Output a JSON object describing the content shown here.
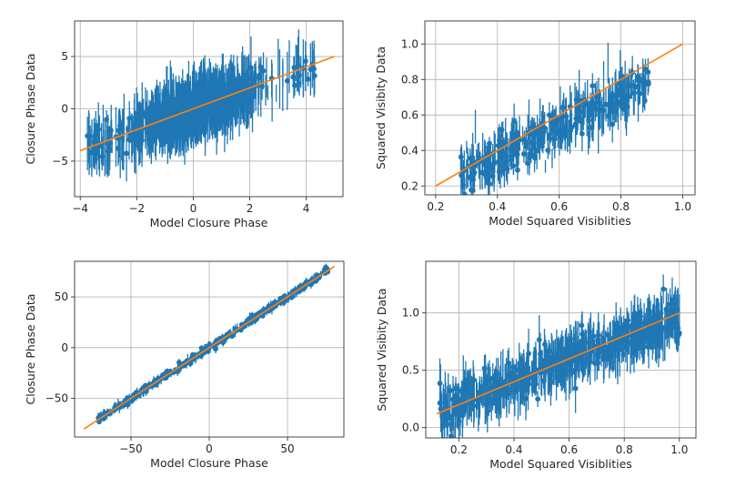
{
  "figure": {
    "colors": {
      "data": "#1f77b4",
      "fit": "#ff7f0e",
      "grid": "#b0b0b0",
      "axes": "#333333"
    }
  },
  "chart_data": [
    {
      "id": "closure-phase-top",
      "type": "scatter",
      "xlabel": "Model Closure Phase",
      "ylabel": "Closure Phase Data",
      "xlim": [
        -4.2,
        5.3
      ],
      "ylim": [
        -8.4,
        8.4
      ],
      "xticks": [
        -4,
        -2,
        0,
        2,
        4
      ],
      "xtick_labels": [
        "−4",
        "−2",
        "0",
        "2",
        "4"
      ],
      "yticks": [
        -5,
        0,
        5
      ],
      "ytick_labels": [
        "−5",
        "0",
        "5"
      ],
      "grid": true,
      "fit_line": {
        "x": [
          -4.0,
          5.0
        ],
        "y": [
          -4.0,
          5.0
        ]
      },
      "points": {
        "count": 900,
        "x_center": 0.0,
        "x_spread": 1.2,
        "x_range": [
          -3.8,
          4.3
        ],
        "slope": 1.0,
        "noise": 0.9,
        "err_min": 0.5,
        "err_max": 3.0,
        "extra_clusters": [
          {
            "x": [
              3.5,
              4.3
            ],
            "count": 25
          },
          {
            "x": [
              -3.8,
              -2.5
            ],
            "count": 40
          }
        ]
      }
    },
    {
      "id": "squared-visibility-top",
      "type": "scatter",
      "xlabel": "Model Squared Visiblities",
      "ylabel": "Squared Visibity Data",
      "xlim": [
        0.165,
        1.04
      ],
      "ylim": [
        0.15,
        1.13
      ],
      "xticks": [
        0.2,
        0.4,
        0.6,
        0.8,
        1.0
      ],
      "xtick_labels": [
        "0.2",
        "0.4",
        "0.6",
        "0.8",
        "1.0"
      ],
      "yticks": [
        0.2,
        0.4,
        0.6,
        0.8,
        1.0
      ],
      "ytick_labels": [
        "0.2",
        "0.4",
        "0.6",
        "0.8",
        "1.0"
      ],
      "grid": true,
      "fit_line": {
        "x": [
          0.2,
          1.0
        ],
        "y": [
          0.2,
          1.0
        ]
      },
      "points": {
        "count": 420,
        "x_range": [
          0.28,
          0.89
        ],
        "slope": 0.85,
        "intercept": 0.02,
        "noise": 0.06,
        "err_min": 0.03,
        "err_max": 0.12
      }
    },
    {
      "id": "closure-phase-bottom",
      "type": "scatter",
      "xlabel": "Model Closure Phase",
      "ylabel": "Closure Phase Data",
      "xlim": [
        -86,
        86
      ],
      "ylim": [
        -88,
        85
      ],
      "xticks": [
        -50,
        0,
        50
      ],
      "xtick_labels": [
        "−50",
        "0",
        "50"
      ],
      "yticks": [
        -50,
        0,
        50
      ],
      "ytick_labels": [
        "−50",
        "0",
        "50"
      ],
      "grid": true,
      "fit_line": {
        "x": [
          -80,
          80
        ],
        "y": [
          -80,
          80
        ]
      },
      "points": {
        "count": 520,
        "x_range": [
          -72,
          76
        ],
        "slope": 1.0,
        "noise": 1.8,
        "err_min": 1.5,
        "err_max": 4.5
      }
    },
    {
      "id": "squared-visibility-bottom",
      "type": "scatter",
      "xlabel": "Model Squared Visiblities",
      "ylabel": "Squared Visibity Data",
      "xlim": [
        0.08,
        1.06
      ],
      "ylim": [
        -0.09,
        1.45
      ],
      "xticks": [
        0.2,
        0.4,
        0.6,
        0.8,
        1.0
      ],
      "xtick_labels": [
        "0.2",
        "0.4",
        "0.6",
        "0.8",
        "1.0"
      ],
      "yticks": [
        0.0,
        0.5,
        1.0
      ],
      "ytick_labels": [
        "0.0",
        "0.5",
        "1.0"
      ],
      "grid": true,
      "fit_line": {
        "x": [
          0.12,
          1.0
        ],
        "y": [
          0.12,
          1.0
        ]
      },
      "points": {
        "count": 700,
        "x_range": [
          0.13,
          1.0
        ],
        "slope": 0.95,
        "intercept": 0.02,
        "noise": 0.09,
        "err_min": 0.05,
        "err_max": 0.22
      }
    }
  ]
}
